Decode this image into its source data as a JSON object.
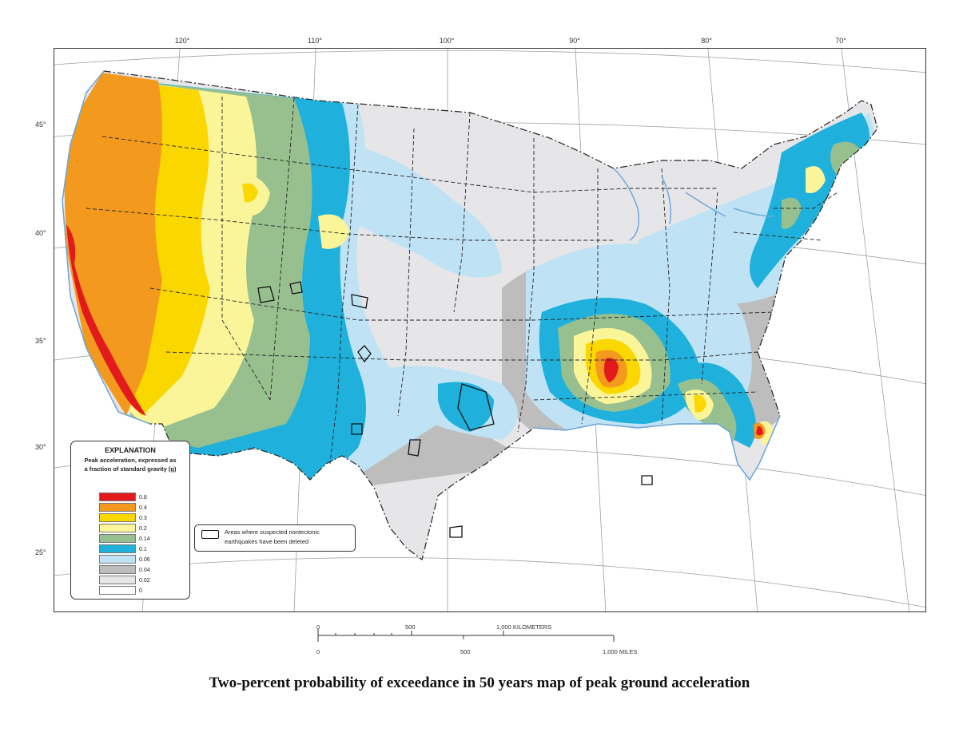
{
  "caption": "Two-percent probability of exceedance in 50 years map of peak ground acceleration",
  "graticule": {
    "longitudes": [
      "120°",
      "110°",
      "100°",
      "90°",
      "80°",
      "70°"
    ],
    "latitudes": [
      "45°",
      "40°",
      "35°",
      "30°",
      "25°"
    ]
  },
  "legend": {
    "title": "EXPLANATION",
    "subtitle_line1": "Peak acceleration, expressed as",
    "subtitle_line2": "a fraction of standard gravity (g)",
    "classes": [
      {
        "label": "0.8",
        "color": "#e31a1c"
      },
      {
        "label": "0.4",
        "color": "#f39a1e"
      },
      {
        "label": "0.3",
        "color": "#fbd700"
      },
      {
        "label": "0.2",
        "color": "#fbf59a"
      },
      {
        "label": "0.14",
        "color": "#98c08f"
      },
      {
        "label": "0.1",
        "color": "#1fb1dc"
      },
      {
        "label": "0.06",
        "color": "#bfe3f4"
      },
      {
        "label": "0.04",
        "color": "#bdbdbd"
      },
      {
        "label": "0.02",
        "color": "#e6e6e8"
      },
      {
        "label": "0",
        "color": "#ffffff"
      }
    ]
  },
  "nontectonic_note": {
    "line1": "Areas where suspected nontectonic",
    "line2": "earthquakes have been deleted"
  },
  "scale_bar": {
    "km_labels": [
      "0",
      "500",
      "1,000 KILOMETERS"
    ],
    "mile_labels": [
      "0",
      "500",
      "1,000 MILES"
    ]
  },
  "map_colors": {
    "water": "#6fa8dc",
    "boundary": "#222222"
  }
}
